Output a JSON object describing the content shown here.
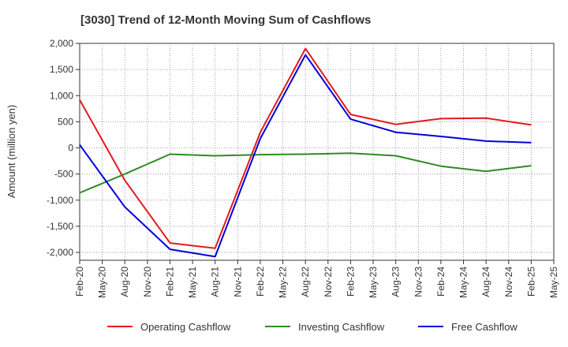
{
  "chart_data": {
    "type": "line",
    "title": "[3030]  Trend of 12-Month Moving Sum of Cashflows",
    "xlabel": "",
    "ylabel": "Amount (million yen)",
    "ylim": [
      -2150,
      2000
    ],
    "yticks": [
      2000,
      1500,
      1000,
      500,
      0,
      -500,
      -1000,
      -1500,
      -2000
    ],
    "ytick_labels": [
      "2,000",
      "1,500",
      "1,000",
      "500",
      "0",
      "-500",
      "-1,000",
      "-1,500",
      "-2,000"
    ],
    "categories": [
      "Feb-20",
      "May-20",
      "Aug-20",
      "Nov-20",
      "Feb-21",
      "May-21",
      "Aug-21",
      "Nov-21",
      "Feb-22",
      "May-22",
      "Aug-22",
      "Nov-22",
      "Feb-23",
      "May-23",
      "Aug-23",
      "Nov-23",
      "Feb-24",
      "May-24",
      "Aug-24",
      "Nov-24",
      "Feb-25",
      "May-25"
    ],
    "grid": true,
    "legend_position": "bottom",
    "series": [
      {
        "name": "Operating Cashflow",
        "color": "#e41a1c",
        "values": [
          920,
          null,
          -620,
          null,
          -1820,
          null,
          -1920,
          null,
          300,
          null,
          1900,
          null,
          640,
          null,
          450,
          null,
          560,
          null,
          570,
          null,
          440,
          null
        ]
      },
      {
        "name": "Investing Cashflow",
        "color": "#2e8b22",
        "values": [
          -860,
          null,
          -500,
          null,
          -120,
          null,
          -150,
          null,
          -130,
          null,
          -120,
          null,
          -100,
          null,
          -150,
          null,
          -350,
          null,
          -450,
          null,
          -340,
          null
        ]
      },
      {
        "name": "Free Cashflow",
        "color": "#0000dd",
        "values": [
          60,
          null,
          -1130,
          null,
          -1940,
          null,
          -2080,
          null,
          180,
          null,
          1780,
          null,
          550,
          null,
          300,
          null,
          220,
          null,
          130,
          null,
          100,
          null
        ]
      }
    ]
  }
}
